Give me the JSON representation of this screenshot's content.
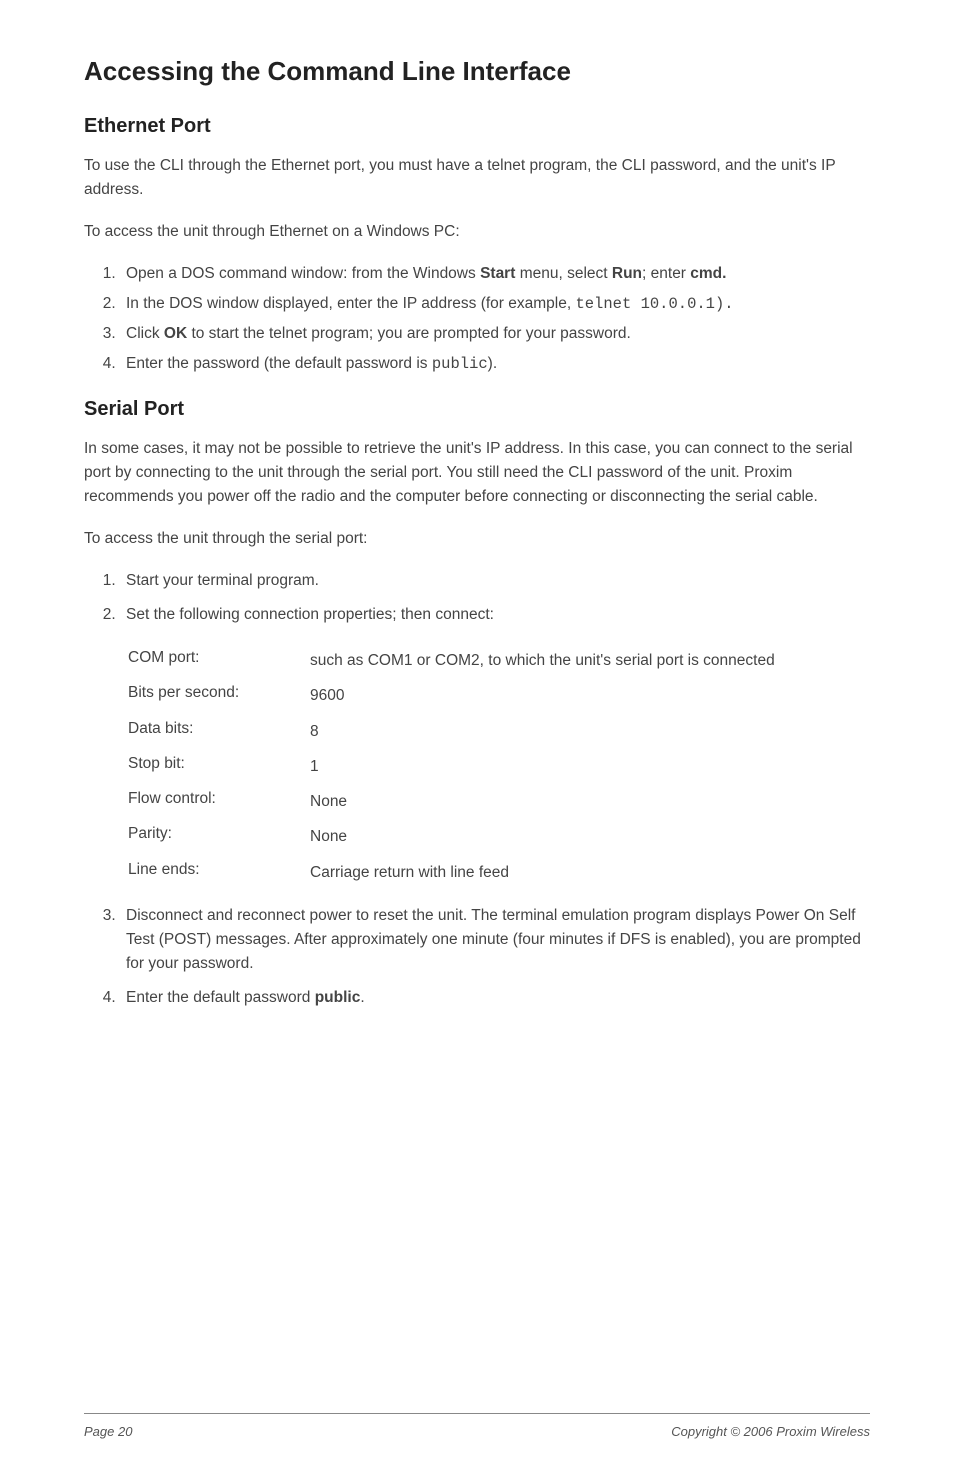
{
  "title": "Accessing the Command Line Interface",
  "section1": {
    "heading": "Ethernet Port",
    "p1_a": "To use the CLI through the Ethernet port, you must have a telnet program, the CLI password, and the unit's IP address.",
    "p2": "To access the unit through Ethernet on a Windows PC:",
    "li1_a": "Open a DOS command window:  from the Windows ",
    "li1_start": "Start",
    "li1_b": " menu, select ",
    "li1_run": "Run",
    "li1_c": "; enter ",
    "li1_cmd": "cmd.",
    "li2_a": "In the DOS window displayed, enter the IP address (for example, ",
    "li2_code": "telnet 10.0.0.1",
    "li2_b": ").",
    "li3_a": "Click ",
    "li3_ok": "OK",
    "li3_b": " to start the telnet program; you are prompted for your password.",
    "li4_a": "Enter the password (the default password is ",
    "li4_code": "public",
    "li4_b": ")."
  },
  "section2": {
    "heading": "Serial Port",
    "p1": "In some cases, it may not be possible to retrieve the unit's IP address.  In this case, you can connect to the serial port by connecting to the unit through the serial port.  You still need the CLI password of the unit.  Proxim recommends you power off the radio and the computer before connecting or disconnecting the serial cable.",
    "p2": "To access the unit through the serial port:",
    "li1": "Start your terminal program.",
    "li2": "Set the following connection properties; then connect:",
    "rows": {
      "com_label": "COM port:",
      "com_value": "such as COM1 or COM2, to which the unit's serial port is connected",
      "bps_label": "Bits per second:",
      "bps_value": "9600",
      "data_label": "Data bits:",
      "data_value": "8",
      "stop_label": "Stop bit:",
      "stop_value": "1",
      "flow_label": "Flow control:",
      "flow_value": "None",
      "parity_label": "Parity:",
      "parity_value": "None",
      "line_label": "Line ends:",
      "line_value": "Carriage return with line feed"
    },
    "li3": "Disconnect and reconnect power to reset the unit.  The terminal emulation program displays Power On Self Test (POST) messages.  After approximately one minute (four minutes if DFS is enabled), you are prompted for your password.",
    "li4_a": "Enter the default password ",
    "li4_b": "public",
    "li4_c": "."
  },
  "footer": {
    "left": "Page 20",
    "right": "Copyright © 2006 Proxim Wireless"
  }
}
